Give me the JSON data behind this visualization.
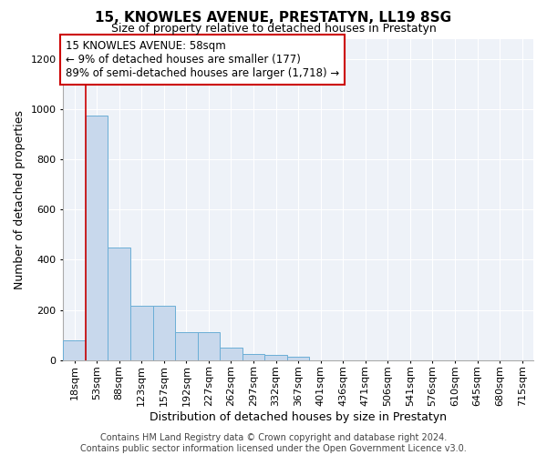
{
  "title": "15, KNOWLES AVENUE, PRESTATYN, LL19 8SG",
  "subtitle": "Size of property relative to detached houses in Prestatyn",
  "xlabel": "Distribution of detached houses by size in Prestatyn",
  "ylabel": "Number of detached properties",
  "bin_labels": [
    "18sqm",
    "53sqm",
    "88sqm",
    "123sqm",
    "157sqm",
    "192sqm",
    "227sqm",
    "262sqm",
    "297sqm",
    "332sqm",
    "367sqm",
    "401sqm",
    "436sqm",
    "471sqm",
    "506sqm",
    "541sqm",
    "576sqm",
    "610sqm",
    "645sqm",
    "680sqm",
    "715sqm"
  ],
  "bar_heights": [
    80,
    975,
    450,
    215,
    215,
    110,
    110,
    50,
    25,
    20,
    15,
    0,
    0,
    0,
    0,
    0,
    0,
    0,
    0,
    0,
    0
  ],
  "bar_color": "#c8d8ec",
  "bar_edge_color": "#6baed6",
  "property_line_color": "#cc0000",
  "property_line_x": 1,
  "annotation_text": "15 KNOWLES AVENUE: 58sqm\n← 9% of detached houses are smaller (177)\n89% of semi-detached houses are larger (1,718) →",
  "annotation_box_color": "#cc0000",
  "ylim": [
    0,
    1280
  ],
  "yticks": [
    0,
    200,
    400,
    600,
    800,
    1000,
    1200
  ],
  "footer_text": "Contains HM Land Registry data © Crown copyright and database right 2024.\nContains public sector information licensed under the Open Government Licence v3.0.",
  "background_color": "#ffffff",
  "plot_bg_color": "#eef2f8",
  "grid_color": "#ffffff",
  "title_fontsize": 11,
  "subtitle_fontsize": 9,
  "axis_label_fontsize": 9,
  "tick_fontsize": 8,
  "annotation_fontsize": 8.5,
  "footer_fontsize": 7
}
